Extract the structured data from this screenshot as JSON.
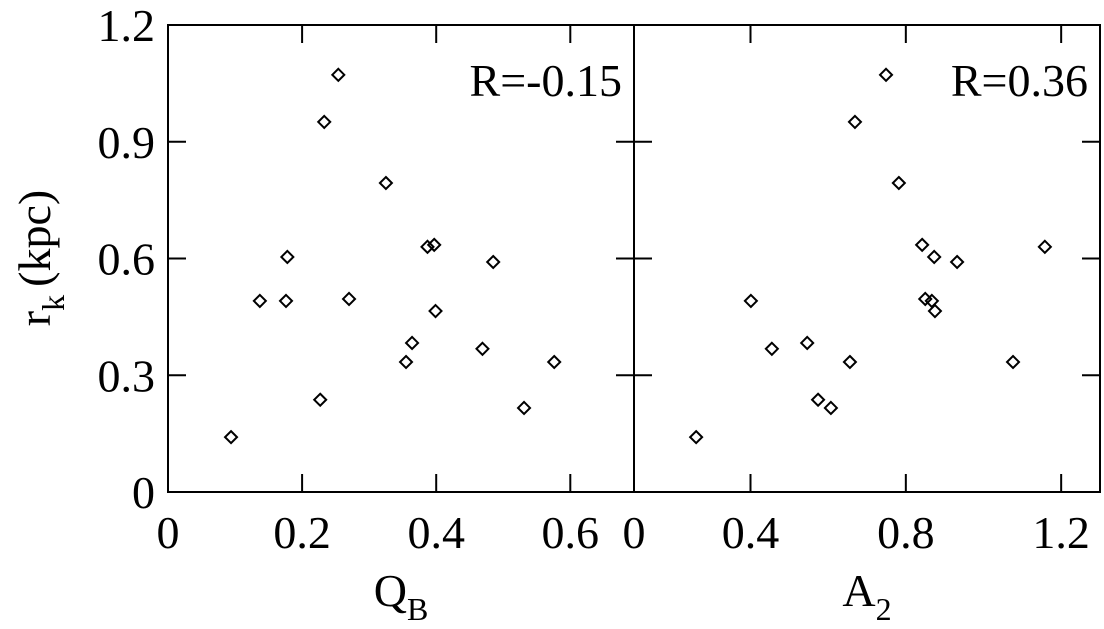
{
  "chart_data": [
    {
      "type": "scatter",
      "xlabel": [
        "Q",
        "B"
      ],
      "ylabel": [
        "r",
        "k",
        "(kpc)"
      ],
      "annotation": "R=-0.15",
      "xlim": [
        0,
        0.695
      ],
      "ylim": [
        0,
        1.2
      ],
      "xticks": [
        0,
        0.2,
        0.4,
        0.6
      ],
      "yticks": [
        0,
        0.3,
        0.6,
        0.9,
        1.2
      ],
      "color": "#000000",
      "x": [
        0.094,
        0.137,
        0.176,
        0.178,
        0.227,
        0.233,
        0.254,
        0.27,
        0.325,
        0.355,
        0.364,
        0.387,
        0.397,
        0.399,
        0.469,
        0.485,
        0.531,
        0.576
      ],
      "values": [
        0.141,
        0.491,
        0.491,
        0.604,
        0.237,
        0.951,
        1.072,
        0.496,
        0.794,
        0.334,
        0.383,
        0.63,
        0.635,
        0.465,
        0.368,
        0.591,
        0.216,
        0.334
      ]
    },
    {
      "type": "scatter",
      "xlabel": [
        "A",
        "2"
      ],
      "annotation": "R=0.36",
      "xlim": [
        0.1,
        1.3
      ],
      "ylim": [
        0,
        1.2
      ],
      "xticks": [
        {
          "value": 0.1,
          "label": "0"
        },
        0.4,
        0.8,
        1.2
      ],
      "yticks": [
        0,
        0.3,
        0.6,
        0.9,
        1.2
      ],
      "color": "#000000",
      "x": [
        0.26,
        0.401,
        0.455,
        0.546,
        0.574,
        0.607,
        0.656,
        0.669,
        0.749,
        0.782,
        0.842,
        0.85,
        0.867,
        0.873,
        0.875,
        0.932,
        1.076,
        1.158
      ],
      "values": [
        0.141,
        0.491,
        0.368,
        0.383,
        0.237,
        0.216,
        0.334,
        0.951,
        1.072,
        0.794,
        0.635,
        0.496,
        0.491,
        0.604,
        0.465,
        0.591,
        0.334,
        0.63
      ]
    }
  ]
}
